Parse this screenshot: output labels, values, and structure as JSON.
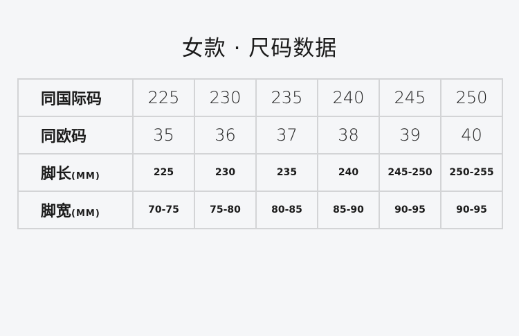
{
  "title": "女款 · 尺码数据",
  "rows": [
    {
      "label": "同国际码",
      "unit": "",
      "values": [
        "225",
        "230",
        "235",
        "240",
        "245",
        "250"
      ]
    },
    {
      "label": "同欧码",
      "unit": "",
      "values": [
        "35",
        "36",
        "37",
        "38",
        "39",
        "40"
      ]
    },
    {
      "label": "脚长",
      "unit": "(MM)",
      "values": [
        "225",
        "230",
        "235",
        "240",
        "245-250",
        "250-255"
      ]
    },
    {
      "label": "脚宽",
      "unit": "(MM)",
      "values": [
        "70-75",
        "75-80",
        "80-85",
        "85-90",
        "90-95",
        "90-95"
      ]
    }
  ]
}
